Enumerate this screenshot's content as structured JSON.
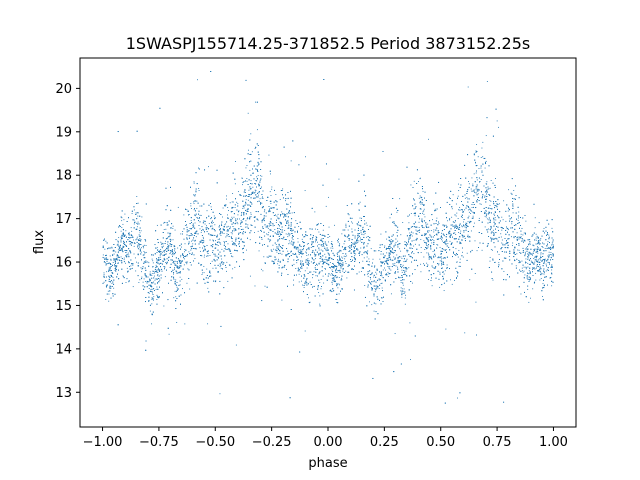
{
  "chart_data": {
    "type": "scatter",
    "title": "1SWASPJ155714.25-371852.5 Period 3873152.25s",
    "xlabel": "phase",
    "ylabel": "flux",
    "xlim": [
      -1.1,
      1.1
    ],
    "ylim": [
      12.2,
      20.7
    ],
    "grid": false,
    "legend": "none",
    "x_ticks": [
      -1.0,
      -0.75,
      -0.5,
      -0.25,
      0.0,
      0.25,
      0.5,
      0.75,
      1.0
    ],
    "x_tick_labels": [
      "−1.00",
      "−0.75",
      "−0.50",
      "−0.25",
      "0.00",
      "0.25",
      "0.50",
      "0.75",
      "1.00"
    ],
    "y_ticks": [
      13,
      14,
      15,
      16,
      17,
      18,
      19,
      20
    ],
    "y_tick_labels": [
      "13",
      "14",
      "15",
      "16",
      "17",
      "18",
      "19",
      "20"
    ],
    "marker_color": "#1f77b4",
    "profile": {
      "phase": [
        0.0,
        0.03,
        0.06,
        0.09,
        0.12,
        0.15,
        0.18,
        0.21,
        0.24,
        0.27,
        0.3,
        0.33,
        0.36,
        0.39,
        0.42,
        0.45,
        0.48,
        0.51,
        0.54,
        0.57,
        0.6,
        0.63,
        0.66,
        0.69,
        0.72,
        0.75,
        0.78,
        0.81,
        0.84,
        0.87,
        0.9,
        0.93,
        0.96,
        1.0
      ],
      "flux_median": [
        16.2,
        15.7,
        16.0,
        16.5,
        16.2,
        16.8,
        16.0,
        15.4,
        15.8,
        16.2,
        16.5,
        15.6,
        16.4,
        16.8,
        17.0,
        16.3,
        16.6,
        16.2,
        16.7,
        16.5,
        16.9,
        17.1,
        17.6,
        17.8,
        16.8,
        16.9,
        16.4,
        16.9,
        16.5,
        16.1,
        16.0,
        16.2,
        16.0,
        16.3
      ],
      "flux_spread": [
        0.45,
        0.4,
        0.4,
        0.5,
        0.45,
        0.7,
        0.5,
        0.4,
        0.6,
        0.4,
        0.6,
        0.4,
        0.6,
        0.7,
        0.7,
        0.5,
        0.6,
        0.5,
        0.6,
        0.7,
        0.7,
        0.7,
        0.8,
        0.8,
        0.6,
        0.7,
        0.5,
        0.7,
        0.6,
        0.5,
        0.5,
        0.5,
        0.5,
        0.5
      ]
    },
    "point_count": 9000
  }
}
